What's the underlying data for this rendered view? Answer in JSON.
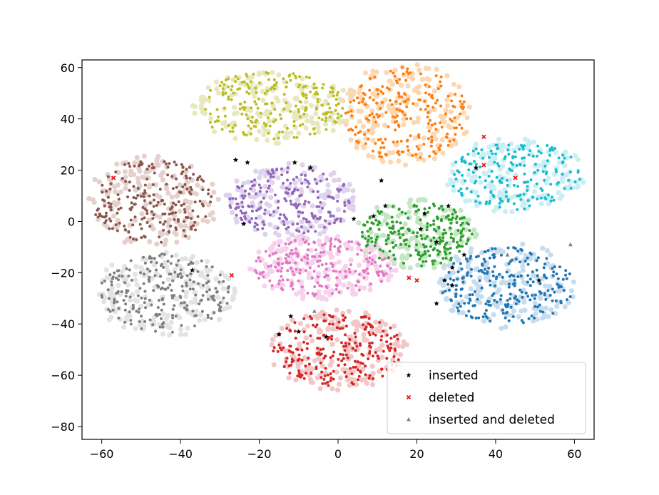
{
  "chart_data": {
    "type": "scatter",
    "title": "",
    "xlabel": "",
    "ylabel": "",
    "xlim": [
      -65,
      65
    ],
    "ylim": [
      -85,
      63
    ],
    "grid": false,
    "xticks": [
      -60,
      -40,
      -20,
      0,
      20,
      40,
      60
    ],
    "yticks": [
      60,
      40,
      20,
      0,
      -20,
      -40,
      -60,
      -80
    ],
    "xtick_labels": [
      "−60",
      "−40",
      "−20",
      "0",
      "20",
      "40",
      "60"
    ],
    "ytick_labels": [
      "60",
      "40",
      "20",
      "0",
      "−20",
      "−40",
      "−60",
      "−80"
    ],
    "clusters": [
      {
        "color": "#bcbd22",
        "light": "#e8e8c0",
        "cx": -17,
        "cy": 45,
        "rx": 20,
        "ry": 14,
        "n": 210,
        "ln": 170
      },
      {
        "color": "#ff7f0e",
        "light": "#fdd7b2",
        "cx": 17,
        "cy": 42,
        "rx": 16,
        "ry": 19,
        "n": 210,
        "ln": 170
      },
      {
        "color": "#17becf",
        "light": "#c9eef3",
        "cx": 45,
        "cy": 18,
        "rx": 17,
        "ry": 14,
        "n": 180,
        "ln": 160
      },
      {
        "color": "#8c564b",
        "light": "#e4d0cc",
        "cx": -47,
        "cy": 8,
        "rx": 16,
        "ry": 17,
        "n": 210,
        "ln": 170
      },
      {
        "color": "#9467bd",
        "light": "#dfd2ec",
        "cx": -12,
        "cy": 8,
        "rx": 16,
        "ry": 14,
        "n": 200,
        "ln": 150
      },
      {
        "color": "#2ca02c",
        "light": "#c4e6c4",
        "cx": 20,
        "cy": -5,
        "rx": 15,
        "ry": 13,
        "n": 220,
        "ln": 140
      },
      {
        "color": "#e377c2",
        "light": "#f6d2ec",
        "cx": -4,
        "cy": -18,
        "rx": 18,
        "ry": 12,
        "n": 190,
        "ln": 190
      },
      {
        "color": "#7f7f7f",
        "light": "#e3e3e3",
        "cx": -44,
        "cy": -28,
        "rx": 17,
        "ry": 16,
        "n": 220,
        "ln": 180
      },
      {
        "color": "#1f77b4",
        "light": "#c6dcef",
        "cx": 43,
        "cy": -25,
        "rx": 17,
        "ry": 16,
        "n": 230,
        "ln": 180
      },
      {
        "color": "#d62728",
        "light": "#f3c7c7",
        "cx": 0,
        "cy": -50,
        "rx": 17,
        "ry": 15,
        "n": 230,
        "ln": 180
      }
    ],
    "inserted": [
      [
        -26,
        24
      ],
      [
        -23,
        23
      ],
      [
        -11,
        23
      ],
      [
        -7,
        21
      ],
      [
        -24,
        -1
      ],
      [
        9,
        2
      ],
      [
        12,
        6
      ],
      [
        22,
        3
      ],
      [
        28,
        6
      ],
      [
        21,
        -3
      ],
      [
        25,
        -8
      ],
      [
        32,
        -13
      ],
      [
        29,
        -18
      ],
      [
        27,
        -23
      ],
      [
        29,
        -25
      ],
      [
        25,
        -32
      ],
      [
        35,
        21
      ],
      [
        51,
        -23
      ],
      [
        -12,
        -37
      ],
      [
        -10,
        -43
      ],
      [
        -15,
        -44
      ],
      [
        -3,
        -45
      ],
      [
        -37,
        -19
      ],
      [
        4,
        1
      ],
      [
        11,
        16
      ]
    ],
    "deleted": [
      [
        -57,
        17
      ],
      [
        37,
        33
      ],
      [
        37,
        22
      ],
      [
        45,
        17
      ],
      [
        -27,
        -21
      ],
      [
        20,
        -23
      ],
      [
        18,
        -22
      ]
    ],
    "inserted_and_deleted": [
      [
        59,
        -9
      ],
      [
        43,
        -13
      ],
      [
        -6,
        -35
      ]
    ],
    "legend": {
      "position": "lower right",
      "entries": [
        {
          "label": "inserted",
          "marker": "star",
          "color": "#000000"
        },
        {
          "label": "deleted",
          "marker": "x",
          "color": "#e31a1c"
        },
        {
          "label": "inserted and deleted",
          "marker": "triangle",
          "color": "#808080"
        }
      ]
    }
  }
}
